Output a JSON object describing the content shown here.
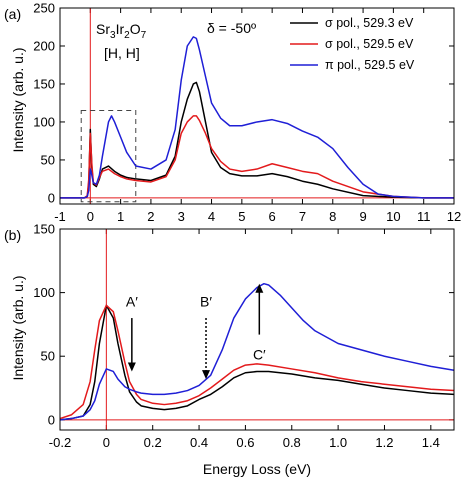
{
  "chart_data": [
    {
      "type": "line",
      "panel_label": "(a)",
      "xlabel": "",
      "ylabel": "Intensity (arb. u.)",
      "xlim": [
        -1,
        12
      ],
      "ylim": [
        -8,
        250
      ],
      "xticks": [
        -1,
        0,
        1,
        2,
        3,
        4,
        5,
        6,
        7,
        8,
        9,
        10,
        11,
        12
      ],
      "xtick_labels": [
        "-1",
        "0",
        "1",
        "2",
        "3",
        "4",
        "5",
        "6",
        "7",
        "8",
        "9",
        "10",
        "11",
        "12"
      ],
      "yticks": [
        0,
        50,
        100,
        150,
        200,
        250
      ],
      "ytick_labels": [
        "0",
        "50",
        "100",
        "150",
        "200",
        "250"
      ],
      "sample_label_main": "Sr",
      "sample_label_sub1": "3",
      "sample_label_mid": "Ir",
      "sample_label_sub2": "2",
      "sample_label_end": "O",
      "sample_label_sub3": "7",
      "direction_label": "[H, H]",
      "angle_label": "δ = -50º",
      "legend_position": "top-right",
      "guide_line_x": 0,
      "guide_line_y": 0,
      "zoom_box": {
        "x": [
          -0.3,
          1.5
        ],
        "y": [
          -5,
          115
        ]
      },
      "series": [
        {
          "name": "σ pol., 529.3 eV",
          "color": "#000000",
          "x": [
            -1,
            -0.2,
            -0.1,
            -0.05,
            0,
            0.05,
            0.1,
            0.2,
            0.3,
            0.4,
            0.6,
            0.8,
            1.0,
            1.2,
            1.5,
            2.0,
            2.5,
            2.8,
            3.0,
            3.2,
            3.4,
            3.5,
            3.6,
            3.8,
            4.0,
            4.3,
            4.6,
            5.0,
            5.5,
            6.0,
            6.5,
            7.0,
            7.5,
            8.0,
            9.0,
            10.0,
            11.0,
            12.0
          ],
          "y": [
            0,
            0,
            2,
            20,
            90,
            40,
            18,
            15,
            25,
            38,
            42,
            35,
            30,
            27,
            25,
            23,
            30,
            55,
            100,
            130,
            150,
            152,
            140,
            100,
            60,
            40,
            32,
            29,
            29,
            32,
            28,
            22,
            18,
            12,
            3,
            1,
            0,
            0
          ]
        },
        {
          "name": "σ pol., 529.5 eV",
          "color": "#e31a1c",
          "x": [
            -1,
            -0.2,
            -0.1,
            -0.05,
            0,
            0.05,
            0.1,
            0.2,
            0.3,
            0.4,
            0.6,
            0.8,
            1.0,
            1.2,
            1.5,
            2.0,
            2.5,
            2.8,
            3.0,
            3.2,
            3.4,
            3.5,
            3.6,
            3.8,
            4.0,
            4.3,
            4.6,
            5.0,
            5.5,
            6.0,
            6.5,
            7.0,
            7.5,
            8.0,
            9.0,
            10.0,
            11.0,
            12.0
          ],
          "y": [
            0,
            0,
            3,
            25,
            85,
            45,
            20,
            17,
            27,
            35,
            38,
            32,
            28,
            25,
            23,
            21,
            28,
            50,
            85,
            100,
            108,
            108,
            102,
            85,
            65,
            48,
            38,
            35,
            38,
            45,
            40,
            35,
            32,
            22,
            8,
            2,
            0,
            0
          ]
        },
        {
          "name": "π pol., 529.5 eV",
          "color": "#1f1fd6",
          "x": [
            -1,
            -0.2,
            -0.1,
            -0.05,
            0,
            0.05,
            0.1,
            0.2,
            0.3,
            0.4,
            0.6,
            0.7,
            0.8,
            1.0,
            1.2,
            1.5,
            2.0,
            2.5,
            2.8,
            3.0,
            3.2,
            3.4,
            3.5,
            3.6,
            3.8,
            4.0,
            4.3,
            4.6,
            5.0,
            5.5,
            6.0,
            6.5,
            7.0,
            7.5,
            8.0,
            8.5,
            9.0,
            9.5,
            10.0,
            11.0,
            12.0
          ],
          "y": [
            0,
            0,
            2,
            10,
            38,
            30,
            20,
            18,
            30,
            55,
            100,
            108,
            100,
            80,
            60,
            42,
            38,
            50,
            90,
            155,
            200,
            212,
            210,
            195,
            160,
            125,
            105,
            95,
            95,
            100,
            103,
            98,
            88,
            80,
            65,
            40,
            18,
            5,
            2,
            0,
            0
          ]
        }
      ]
    },
    {
      "type": "line",
      "panel_label": "(b)",
      "xlabel": "Energy Loss (eV)",
      "ylabel": "Intensity (arb. u.)",
      "xlim": [
        -0.2,
        1.5
      ],
      "ylim": [
        -8,
        150
      ],
      "xticks": [
        -0.2,
        0,
        0.2,
        0.4,
        0.6,
        0.8,
        1.0,
        1.2,
        1.4
      ],
      "xtick_labels": [
        "-0.2",
        "0",
        "0.2",
        "0.4",
        "0.6",
        "0.8",
        "1.0",
        "1.2",
        "1.4"
      ],
      "yticks": [
        0,
        50,
        100,
        150
      ],
      "ytick_labels": [
        "0",
        "50",
        "100",
        "150"
      ],
      "guide_line_x": 0,
      "guide_line_y": 0,
      "annotations": [
        {
          "label": "A′",
          "x": 0.11,
          "y_text": 86,
          "y_tail": 80,
          "y_head": 38,
          "style": "solid"
        },
        {
          "label": "B′",
          "x": 0.43,
          "y_text": 86,
          "y_tail": 80,
          "y_head": 32,
          "style": "dotted"
        },
        {
          "label": "C′",
          "x": 0.66,
          "y_text": 60,
          "y_tail": 67,
          "y_head": 107,
          "style": "solid"
        }
      ],
      "series": [
        {
          "name": "σ pol., 529.3 eV",
          "color": "#000000",
          "x": [
            -0.2,
            -0.15,
            -0.1,
            -0.07,
            -0.05,
            -0.03,
            0,
            0.03,
            0.05,
            0.08,
            0.1,
            0.13,
            0.15,
            0.2,
            0.25,
            0.3,
            0.35,
            0.4,
            0.45,
            0.5,
            0.55,
            0.6,
            0.65,
            0.7,
            0.8,
            0.9,
            1.0,
            1.1,
            1.2,
            1.3,
            1.4,
            1.5
          ],
          "y": [
            0,
            1,
            3,
            12,
            30,
            60,
            90,
            80,
            60,
            35,
            22,
            14,
            11,
            9,
            8,
            9,
            11,
            16,
            20,
            26,
            33,
            37,
            38,
            38,
            36,
            33,
            31,
            28,
            25,
            23,
            21,
            20
          ]
        },
        {
          "name": "σ pol., 529.5 eV",
          "color": "#e31a1c",
          "x": [
            -0.2,
            -0.15,
            -0.1,
            -0.07,
            -0.05,
            -0.03,
            0,
            0.03,
            0.05,
            0.08,
            0.1,
            0.13,
            0.15,
            0.2,
            0.25,
            0.3,
            0.35,
            0.4,
            0.45,
            0.5,
            0.55,
            0.6,
            0.65,
            0.7,
            0.8,
            0.9,
            1.0,
            1.1,
            1.2,
            1.3,
            1.4,
            1.5
          ],
          "y": [
            1,
            4,
            12,
            30,
            55,
            78,
            90,
            85,
            70,
            45,
            30,
            20,
            16,
            13,
            12,
            13,
            15,
            19,
            25,
            32,
            39,
            43,
            44,
            43,
            40,
            37,
            33,
            30,
            28,
            26,
            24,
            23
          ]
        },
        {
          "name": "π pol., 529.5 eV",
          "color": "#1f1fd6",
          "x": [
            -0.2,
            -0.15,
            -0.1,
            -0.07,
            -0.05,
            -0.03,
            0,
            0.03,
            0.05,
            0.08,
            0.1,
            0.13,
            0.15,
            0.2,
            0.25,
            0.3,
            0.35,
            0.4,
            0.45,
            0.5,
            0.55,
            0.6,
            0.65,
            0.68,
            0.7,
            0.75,
            0.8,
            0.85,
            0.9,
            1.0,
            1.1,
            1.2,
            1.3,
            1.4,
            1.5
          ],
          "y": [
            0,
            1,
            3,
            8,
            15,
            28,
            40,
            38,
            32,
            26,
            24,
            22,
            21,
            20,
            20,
            21,
            23,
            27,
            35,
            55,
            80,
            95,
            104,
            107,
            106,
            98,
            88,
            78,
            70,
            60,
            55,
            50,
            46,
            42,
            39
          ]
        }
      ]
    }
  ]
}
